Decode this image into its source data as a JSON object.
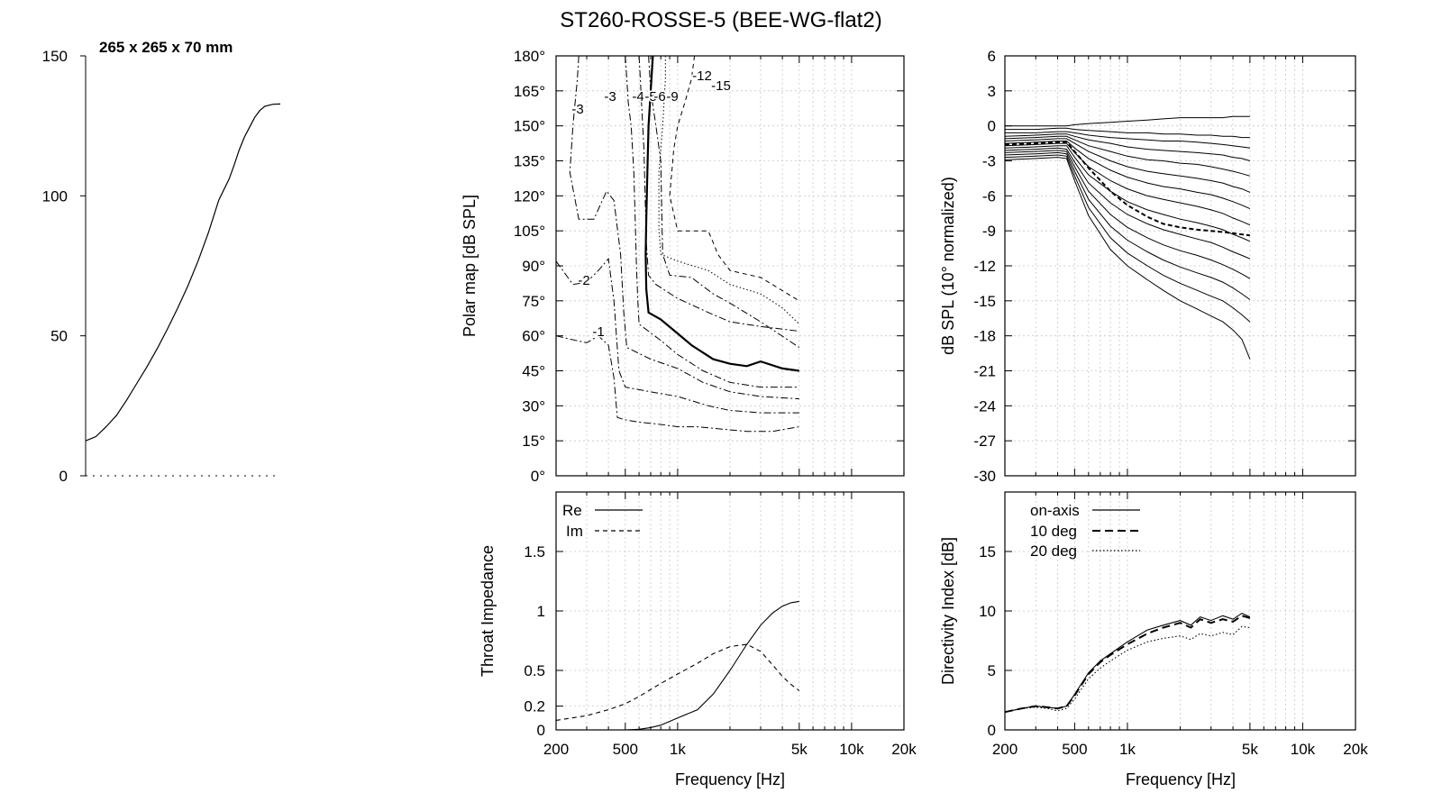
{
  "title": "ST260-ROSSE-5 (BEE-WG-flat2)",
  "profile": {
    "label": "265 x 265 x 70 mm",
    "yticks": [
      0,
      50,
      100,
      150
    ],
    "points": [
      [
        0,
        12.5
      ],
      [
        10,
        14
      ],
      [
        20,
        17.5
      ],
      [
        30,
        21.5
      ],
      [
        40,
        27
      ],
      [
        50,
        33
      ],
      [
        60,
        39
      ],
      [
        70,
        45.5
      ],
      [
        80,
        52.5
      ],
      [
        90,
        60
      ],
      [
        100,
        68
      ],
      [
        110,
        77
      ],
      [
        120,
        87
      ],
      [
        130,
        98.5
      ],
      [
        140,
        106
      ],
      [
        145,
        111
      ],
      [
        150,
        116.5
      ],
      [
        155,
        121
      ],
      [
        160,
        124.5
      ],
      [
        165,
        128
      ],
      [
        170,
        130.5
      ],
      [
        175,
        132
      ],
      [
        183,
        132.7
      ],
      [
        190,
        132.8
      ]
    ]
  },
  "polar": {
    "ylabel": "Polar map [dB SPL]",
    "yticks": [
      "0°",
      "15°",
      "30°",
      "45°",
      "60°",
      "75°",
      "90°",
      "105°",
      "120°",
      "135°",
      "150°",
      "165°",
      "180°"
    ],
    "contour_labels": [
      "-1",
      "-2",
      "-3",
      "-3",
      "-4",
      "-5",
      "-6",
      "-9",
      "-12",
      "-15"
    ],
    "contours": [
      {
        "level": -1,
        "style": "dashdot",
        "points": [
          [
            200,
            60
          ],
          [
            260,
            58
          ],
          [
            300,
            57
          ],
          [
            350,
            60
          ],
          [
            400,
            56
          ],
          [
            430,
            42
          ],
          [
            450,
            25
          ],
          [
            500,
            24
          ],
          [
            600,
            23
          ],
          [
            800,
            22
          ],
          [
            1000,
            21
          ],
          [
            1300,
            21
          ],
          [
            1800,
            20
          ],
          [
            2500,
            19
          ],
          [
            3500,
            19
          ],
          [
            5000,
            21
          ]
        ]
      },
      {
        "level": -2,
        "style": "dashdot",
        "points": [
          [
            200,
            92
          ],
          [
            250,
            82
          ],
          [
            300,
            83
          ],
          [
            350,
            88
          ],
          [
            400,
            93
          ],
          [
            430,
            75
          ],
          [
            460,
            45
          ],
          [
            500,
            38
          ],
          [
            700,
            36
          ],
          [
            1000,
            34
          ],
          [
            1500,
            30
          ],
          [
            2000,
            28
          ],
          [
            3000,
            27
          ],
          [
            5000,
            27
          ]
        ]
      },
      {
        "level": -3,
        "style": "dashdot",
        "points": [
          [
            270,
            180
          ],
          [
            265,
            170
          ],
          [
            250,
            150
          ],
          [
            240,
            130
          ],
          [
            270,
            110
          ],
          [
            330,
            110
          ],
          [
            390,
            122
          ],
          [
            430,
            118
          ],
          [
            470,
            95
          ],
          [
            490,
            70
          ],
          [
            510,
            55
          ],
          [
            700,
            50
          ],
          [
            1000,
            46
          ],
          [
            1400,
            40
          ],
          [
            2000,
            36
          ],
          [
            3000,
            34
          ],
          [
            5000,
            33
          ]
        ]
      },
      {
        "level": -4,
        "style": "dashdot",
        "points": [
          [
            500,
            180
          ],
          [
            510,
            170
          ],
          [
            520,
            160
          ],
          [
            540,
            150
          ],
          [
            560,
            130
          ],
          [
            570,
            110
          ],
          [
            580,
            90
          ],
          [
            590,
            75
          ],
          [
            600,
            65
          ],
          [
            800,
            58
          ],
          [
            1000,
            52
          ],
          [
            1400,
            45
          ],
          [
            2000,
            40
          ],
          [
            3000,
            38
          ],
          [
            5000,
            38
          ]
        ]
      },
      {
        "level": -6,
        "style": "solid",
        "points": [
          [
            720,
            180
          ],
          [
            700,
            165
          ],
          [
            680,
            150
          ],
          [
            670,
            130
          ],
          [
            660,
            110
          ],
          [
            655,
            95
          ],
          [
            660,
            80
          ],
          [
            680,
            70
          ],
          [
            800,
            67
          ],
          [
            1000,
            61
          ],
          [
            1200,
            56
          ],
          [
            1600,
            50
          ],
          [
            2000,
            48
          ],
          [
            2500,
            47
          ],
          [
            3000,
            49
          ],
          [
            4000,
            46
          ],
          [
            5000,
            45
          ]
        ]
      },
      {
        "level": -9,
        "style": "dashdot",
        "points": [
          [
            680,
            180
          ],
          [
            700,
            165
          ],
          [
            750,
            150
          ],
          [
            800,
            135
          ],
          [
            810,
            115
          ],
          [
            820,
            95
          ],
          [
            900,
            86
          ],
          [
            1200,
            85
          ],
          [
            1600,
            78
          ],
          [
            2000,
            74
          ],
          [
            3000,
            66
          ],
          [
            5000,
            55
          ]
        ]
      },
      {
        "level": -12,
        "style": "dotted",
        "points": [
          [
            850,
            180
          ],
          [
            850,
            170
          ],
          [
            820,
            150
          ],
          [
            780,
            130
          ],
          [
            780,
            105
          ],
          [
            800,
            95
          ],
          [
            1000,
            92
          ],
          [
            1500,
            88
          ],
          [
            2000,
            82
          ],
          [
            3000,
            78
          ],
          [
            4000,
            72
          ],
          [
            5000,
            65
          ]
        ]
      },
      {
        "level": -15,
        "style": "dashed",
        "points": [
          [
            1250,
            180
          ],
          [
            1200,
            170
          ],
          [
            1100,
            160
          ],
          [
            1000,
            150
          ],
          [
            950,
            140
          ],
          [
            900,
            120
          ],
          [
            1000,
            105
          ],
          [
            1500,
            105
          ],
          [
            1600,
            100
          ],
          [
            1700,
            95
          ],
          [
            2000,
            88
          ],
          [
            3000,
            85
          ],
          [
            5000,
            75
          ]
        ]
      },
      {
        "level": -5,
        "style": "dashdot",
        "points": [
          [
            600,
            180
          ],
          [
            610,
            170
          ],
          [
            620,
            160
          ],
          [
            640,
            140
          ],
          [
            650,
            120
          ],
          [
            660,
            100
          ],
          [
            680,
            86
          ],
          [
            750,
            82
          ],
          [
            1000,
            76
          ],
          [
            1500,
            70
          ],
          [
            2000,
            66
          ],
          [
            3000,
            64
          ],
          [
            5000,
            62
          ]
        ]
      }
    ]
  },
  "spl": {
    "ylabel": "dB SPL (10° normalized)",
    "yticks": [
      6,
      3,
      0,
      -3,
      -6,
      -9,
      -12,
      -15,
      -18,
      -21,
      -24,
      -27,
      -30
    ],
    "x": [
      200,
      300,
      400,
      450,
      500,
      600,
      800,
      1000,
      1300,
      1600,
      2000,
      2500,
      3000,
      3500,
      4000,
      4500,
      5000
    ],
    "curves": [
      [
        0,
        0,
        0,
        0,
        0.1,
        0.2,
        0.3,
        0.4,
        0.5,
        0.6,
        0.7,
        0.7,
        0.7,
        0.7,
        0.8,
        0.8,
        0.8
      ],
      [
        -0.3,
        -0.3,
        -0.2,
        -0.2,
        -0.3,
        -0.4,
        -0.5,
        -0.6,
        -0.6,
        -0.7,
        -0.7,
        -0.8,
        -0.8,
        -0.9,
        -0.9,
        -1.0,
        -1.0
      ],
      [
        -0.6,
        -0.6,
        -0.5,
        -0.5,
        -0.6,
        -0.8,
        -1.0,
        -1.1,
        -1.2,
        -1.3,
        -1.3,
        -1.4,
        -1.5,
        -1.6,
        -1.7,
        -1.8,
        -1.9
      ],
      [
        -0.9,
        -0.8,
        -0.7,
        -0.7,
        -0.9,
        -1.2,
        -1.5,
        -1.8,
        -2.0,
        -2.1,
        -2.2,
        -2.3,
        -2.4,
        -2.5,
        -2.7,
        -2.8,
        -3.0
      ],
      [
        -1.1,
        -1.0,
        -0.9,
        -0.9,
        -1.2,
        -1.7,
        -2.2,
        -2.6,
        -2.9,
        -3.0,
        -3.2,
        -3.3,
        -3.5,
        -3.7,
        -3.9,
        -4.1,
        -4.3
      ],
      [
        -1.3,
        -1.2,
        -1.1,
        -1.1,
        -1.5,
        -2.2,
        -3.0,
        -3.5,
        -3.9,
        -4.1,
        -4.3,
        -4.5,
        -4.7,
        -4.9,
        -5.2,
        -5.4,
        -5.7
      ],
      [
        -1.5,
        -1.4,
        -1.3,
        -1.3,
        -1.9,
        -2.8,
        -3.8,
        -4.4,
        -4.9,
        -5.2,
        -5.4,
        -5.7,
        -5.9,
        -6.2,
        -6.5,
        -6.8,
        -7.1
      ],
      [
        -1.7,
        -1.6,
        -1.5,
        -1.5,
        -2.3,
        -3.5,
        -4.7,
        -5.4,
        -6.0,
        -6.3,
        -6.6,
        -6.9,
        -7.2,
        -7.5,
        -7.9,
        -8.2,
        -8.5
      ],
      [
        -1.9,
        -1.8,
        -1.7,
        -1.7,
        -2.7,
        -4.2,
        -5.6,
        -6.5,
        -7.2,
        -7.6,
        -8.0,
        -8.3,
        -8.6,
        -8.9,
        -9.3,
        -9.6,
        -9.9
      ],
      [
        -2.1,
        -2.0,
        -1.9,
        -2.0,
        -3.1,
        -4.9,
        -6.6,
        -7.6,
        -8.4,
        -8.9,
        -9.3,
        -9.7,
        -10.0,
        -10.4,
        -10.8,
        -11.1,
        -11.4
      ],
      [
        -2.3,
        -2.2,
        -2.1,
        -2.2,
        -3.5,
        -5.6,
        -7.6,
        -8.7,
        -9.6,
        -10.2,
        -10.7,
        -11.1,
        -11.5,
        -11.9,
        -12.3,
        -12.7,
        -13.1
      ],
      [
        -2.5,
        -2.4,
        -2.3,
        -2.4,
        -3.9,
        -6.3,
        -8.6,
        -9.8,
        -10.8,
        -11.5,
        -12.1,
        -12.6,
        -13.0,
        -13.4,
        -13.9,
        -14.4,
        -14.9
      ],
      [
        -2.7,
        -2.6,
        -2.5,
        -2.6,
        -4.3,
        -7.0,
        -9.6,
        -10.9,
        -12.0,
        -12.8,
        -13.5,
        -14.1,
        -14.6,
        -15.0,
        -15.6,
        -16.2,
        -16.8
      ],
      [
        -2.9,
        -2.8,
        -2.7,
        -2.8,
        -4.7,
        -7.7,
        -10.6,
        -12.0,
        -13.2,
        -14.1,
        -15.0,
        -15.7,
        -16.3,
        -16.8,
        -17.5,
        -18.3,
        -20.0
      ]
    ],
    "dashed_curve": [
      -1.6,
      -1.5,
      -1.4,
      -1.4,
      -2.2,
      -3.6,
      -5.6,
      -6.8,
      -7.8,
      -8.4,
      -8.7,
      -8.9,
      -9.0,
      -9.1,
      -9.2,
      -9.3,
      -9.4
    ]
  },
  "impedance": {
    "ylabel": "Throat Impedance",
    "yticks": [
      "0",
      "0.2",
      "0.5",
      "1",
      "1.5"
    ],
    "legend": [
      "Re",
      "Im"
    ],
    "x": [
      200,
      300,
      400,
      500,
      600,
      700,
      800,
      1000,
      1300,
      1600,
      2000,
      2500,
      3000,
      3500,
      4000,
      4500,
      5000
    ],
    "re": [
      0,
      0,
      0,
      0,
      0.005,
      0.02,
      0.04,
      0.1,
      0.17,
      0.3,
      0.5,
      0.72,
      0.88,
      0.98,
      1.04,
      1.07,
      1.08
    ],
    "im": [
      0.08,
      0.12,
      0.17,
      0.22,
      0.28,
      0.34,
      0.39,
      0.47,
      0.56,
      0.64,
      0.7,
      0.72,
      0.66,
      0.55,
      0.45,
      0.38,
      0.33
    ]
  },
  "di": {
    "ylabel": "Directivity Index [dB]",
    "yticks": [
      0,
      5,
      10,
      15
    ],
    "legend": [
      "on-axis",
      "10 deg",
      "20 deg"
    ],
    "x": [
      200,
      250,
      300,
      350,
      400,
      450,
      500,
      600,
      700,
      800,
      1000,
      1300,
      1600,
      2000,
      2300,
      2600,
      3000,
      3500,
      4000,
      4500,
      5000
    ],
    "on_axis": [
      1.5,
      1.8,
      2.0,
      1.9,
      1.8,
      2.0,
      3.0,
      4.8,
      5.8,
      6.4,
      7.4,
      8.4,
      8.8,
      9.2,
      8.8,
      9.5,
      9.2,
      9.6,
      9.3,
      9.8,
      9.5
    ],
    "deg10": [
      1.5,
      1.8,
      2.0,
      1.9,
      1.8,
      2.0,
      2.9,
      4.7,
      5.7,
      6.3,
      7.2,
      8.1,
      8.6,
      9.0,
      8.6,
      9.3,
      9.0,
      9.3,
      9.1,
      9.6,
      9.4
    ],
    "deg20": [
      1.5,
      1.8,
      1.9,
      1.8,
      1.6,
      1.8,
      2.6,
      4.3,
      5.2,
      5.8,
      6.7,
      7.4,
      7.7,
      7.9,
      7.6,
      8.1,
      7.9,
      8.2,
      8.0,
      8.7,
      8.6
    ]
  },
  "xticks": [
    {
      "v": 200,
      "label": "200"
    },
    {
      "v": 500,
      "label": "500"
    },
    {
      "v": 1000,
      "label": "1k"
    },
    {
      "v": 5000,
      "label": "5k"
    },
    {
      "v": 10000,
      "label": "10k"
    },
    {
      "v": 20000,
      "label": "20k"
    }
  ],
  "xlabel": "Frequency [Hz]",
  "chart_data": [
    {
      "type": "line",
      "title": "265 x 265 x 70 mm",
      "xlim": [
        0,
        190
      ],
      "ylim": [
        0,
        150
      ],
      "series": [
        {
          "values": "profile.points"
        }
      ]
    },
    {
      "type": "heatmap",
      "ylabel": "Polar map [dB SPL]",
      "xlabel": "Frequency [Hz]",
      "xlim": [
        200,
        20000
      ],
      "ylim": [
        0,
        180
      ],
      "x_scale": "log",
      "series": "contour lines -1 ... -15 dB"
    },
    {
      "type": "line",
      "ylabel": "dB SPL (10° normalized)",
      "xlabel": "Frequency [Hz]",
      "xlim": [
        200,
        20000
      ],
      "ylim": [
        -30,
        6
      ],
      "x_scale": "log"
    },
    {
      "type": "line",
      "ylabel": "Throat Impedance",
      "xlabel": "Frequency [Hz]",
      "xlim": [
        200,
        20000
      ],
      "ylim": [
        0,
        2
      ],
      "x_scale": "log",
      "series": [
        {
          "name": "Re"
        },
        {
          "name": "Im"
        }
      ]
    },
    {
      "type": "line",
      "ylabel": "Directivity Index [dB]",
      "xlabel": "Frequency [Hz]",
      "xlim": [
        200,
        20000
      ],
      "ylim": [
        0,
        20
      ],
      "x_scale": "log",
      "series": [
        {
          "name": "on-axis"
        },
        {
          "name": "10 deg"
        },
        {
          "name": "20 deg"
        }
      ]
    }
  ]
}
